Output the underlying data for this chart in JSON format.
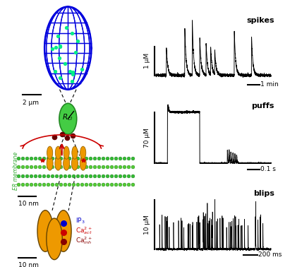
{
  "fig_width": 4.28,
  "fig_height": 3.78,
  "dpi": 100,
  "bg_color": "#ffffff",
  "globe_color": "#0000dd",
  "globe_dot_color": "#00ee88",
  "Rd_color": "#44cc44",
  "Rd_edge": "#228822",
  "er_green": "#33bb33",
  "er_dot_color": "#228822",
  "er_light_green": "#88cc44",
  "channel_color": "#ee9900",
  "channel_edge": "#996600",
  "ca_dot_dark": "#660000",
  "arrow_red": "#cc0000",
  "ip3_blue": "#0000cc",
  "ca_act_red": "#cc0000",
  "ca_inh_dark": "#880000",
  "er_label_green": "#33aa33",
  "spikes_label": "spikes",
  "spikes_ylabel": "1 μM",
  "spikes_scalebar": "1 min",
  "puffs_label": "puffs",
  "puffs_ylabel": "70 μM",
  "puffs_scalebar": "0.1 s",
  "blips_label": "blips",
  "blips_ylabel": "10 μM",
  "blips_scalebar": "200 ms",
  "scale_2um": "2 μm",
  "scale_10nm_top": "10 nm",
  "scale_10nm_bot": "10 nm"
}
